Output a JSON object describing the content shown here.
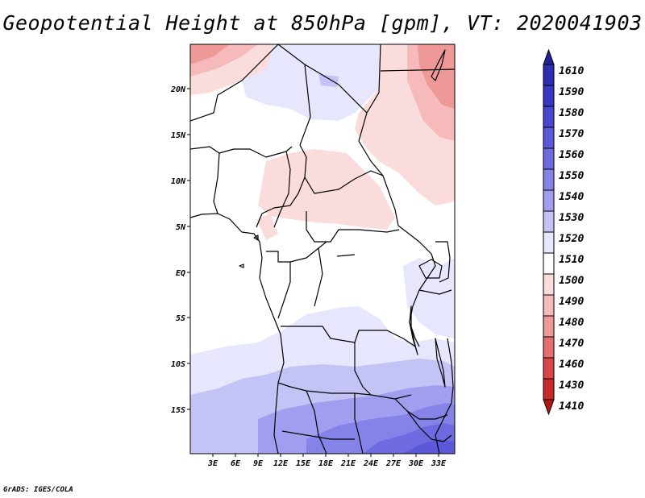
{
  "title": "Geopotential Height at 850hPa [gpm], VT: 2020041903",
  "credit": "GrADS: IGES/COLA",
  "map": {
    "lat_labels": [
      "20N",
      "15N",
      "10N",
      "5N",
      "EQ",
      "5S",
      "10S",
      "15S"
    ],
    "lon_labels": [
      "3E",
      "6E",
      "9E",
      "12E",
      "15E",
      "18E",
      "21E",
      "24E",
      "27E",
      "30E",
      "33E"
    ]
  },
  "colorbar": {
    "levels": [
      "1610",
      "1590",
      "1580",
      "1570",
      "1560",
      "1550",
      "1540",
      "1530",
      "1520",
      "1510",
      "1500",
      "1490",
      "1480",
      "1470",
      "1460",
      "1430",
      "1410"
    ],
    "colors": [
      "#24209a",
      "#2e2cb0",
      "#3a37c2",
      "#4a46d0",
      "#5c58da",
      "#6e6ae0",
      "#8582e8",
      "#a19ef0",
      "#c4c3f6",
      "#e6e6fc",
      "#ffffff",
      "#fbdcdc",
      "#f6baba",
      "#ee9898",
      "#e47070",
      "#d84848",
      "#c82a2a",
      "#b01818"
    ]
  },
  "chart_data": {
    "type": "heatmap",
    "title": "Geopotential Height at 850hPa [gpm], VT: 2020041903",
    "variable": "Geopotential Height at 850hPa",
    "units": "gpm",
    "valid_time": "2020041903",
    "x_ticks": [
      "3E",
      "6E",
      "9E",
      "12E",
      "15E",
      "18E",
      "21E",
      "24E",
      "27E",
      "30E",
      "33E"
    ],
    "y_ticks": [
      "20N",
      "15N",
      "10N",
      "5N",
      "EQ",
      "5S",
      "10S",
      "15S"
    ],
    "colorbar_levels": [
      1410,
      1430,
      1460,
      1470,
      1480,
      1490,
      1500,
      1510,
      1520,
      1530,
      1540,
      1550,
      1560,
      1570,
      1580,
      1590,
      1610
    ]
  }
}
